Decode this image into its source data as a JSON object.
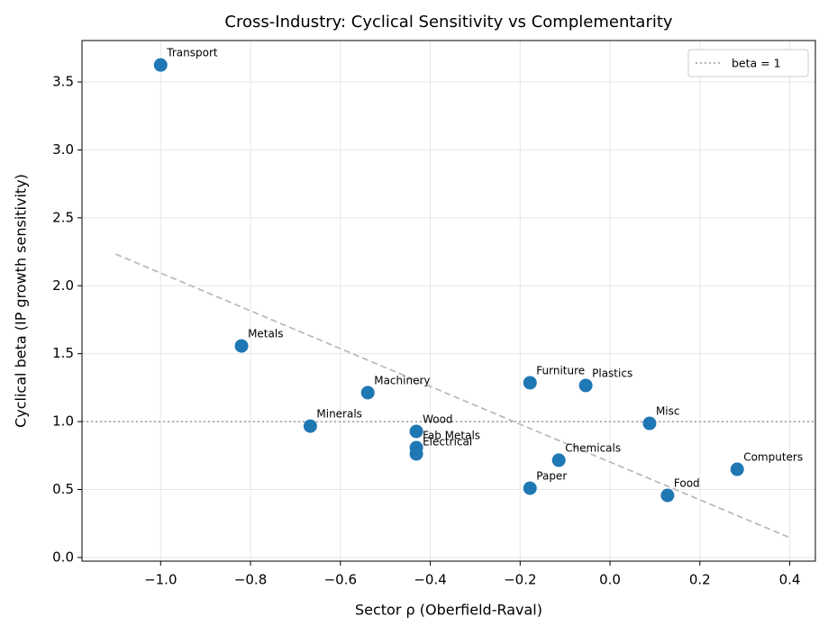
{
  "chart_data": {
    "type": "scatter",
    "title": "Cross-Industry: Cyclical Sensitivity vs Complementarity",
    "xlabel": "Sector ρ (Oberfield-Raval)",
    "ylabel": "Cyclical beta (IP growth sensitivity)",
    "labels": [
      "Transport",
      "Metals",
      "Minerals",
      "Machinery",
      "Wood",
      "Fab Metals",
      "Electrical",
      "Furniture",
      "Paper",
      "Plastics",
      "Chemicals",
      "Misc",
      "Food",
      "Computers"
    ],
    "x": [
      -1.0,
      -0.82,
      -0.667,
      -0.539,
      -0.431,
      -0.431,
      -0.431,
      -0.178,
      -0.178,
      -0.054,
      -0.114,
      0.088,
      0.128,
      0.283
    ],
    "values": [
      3.625,
      1.557,
      0.967,
      1.213,
      0.928,
      0.808,
      0.762,
      1.286,
      0.51,
      1.266,
      0.716,
      0.987,
      0.457,
      0.649
    ],
    "color": "#1f77b4",
    "trend_line": {
      "x": [
        -1.1,
        0.4
      ],
      "y": [
        2.233,
        0.146
      ],
      "color": "#bbbbbb"
    },
    "reference_line": {
      "y": 1,
      "label": "beta = 1",
      "color": "#aaaaaa"
    },
    "legend": "upper right",
    "grid": true,
    "xlim": [
      -1.175,
      0.457
    ],
    "ylim": [
      -0.027,
      3.805
    ],
    "xticks": [
      {
        "value": -1.0,
        "label": "−1.0"
      },
      {
        "value": -0.8,
        "label": "−0.8"
      },
      {
        "value": -0.6,
        "label": "−0.6"
      },
      {
        "value": -0.4,
        "label": "−0.4"
      },
      {
        "value": -0.2,
        "label": "−0.2"
      },
      {
        "value": 0.0,
        "label": "0.0"
      },
      {
        "value": 0.2,
        "label": "0.2"
      },
      {
        "value": 0.4,
        "label": "0.4"
      }
    ],
    "yticks": [
      {
        "value": 0.0,
        "label": "0.0"
      },
      {
        "value": 0.5,
        "label": "0.5"
      },
      {
        "value": 1.0,
        "label": "1.0"
      },
      {
        "value": 1.5,
        "label": "1.5"
      },
      {
        "value": 2.0,
        "label": "2.0"
      },
      {
        "value": 2.5,
        "label": "2.5"
      },
      {
        "value": 3.0,
        "label": "3.0"
      },
      {
        "value": 3.5,
        "label": "3.5"
      }
    ]
  }
}
